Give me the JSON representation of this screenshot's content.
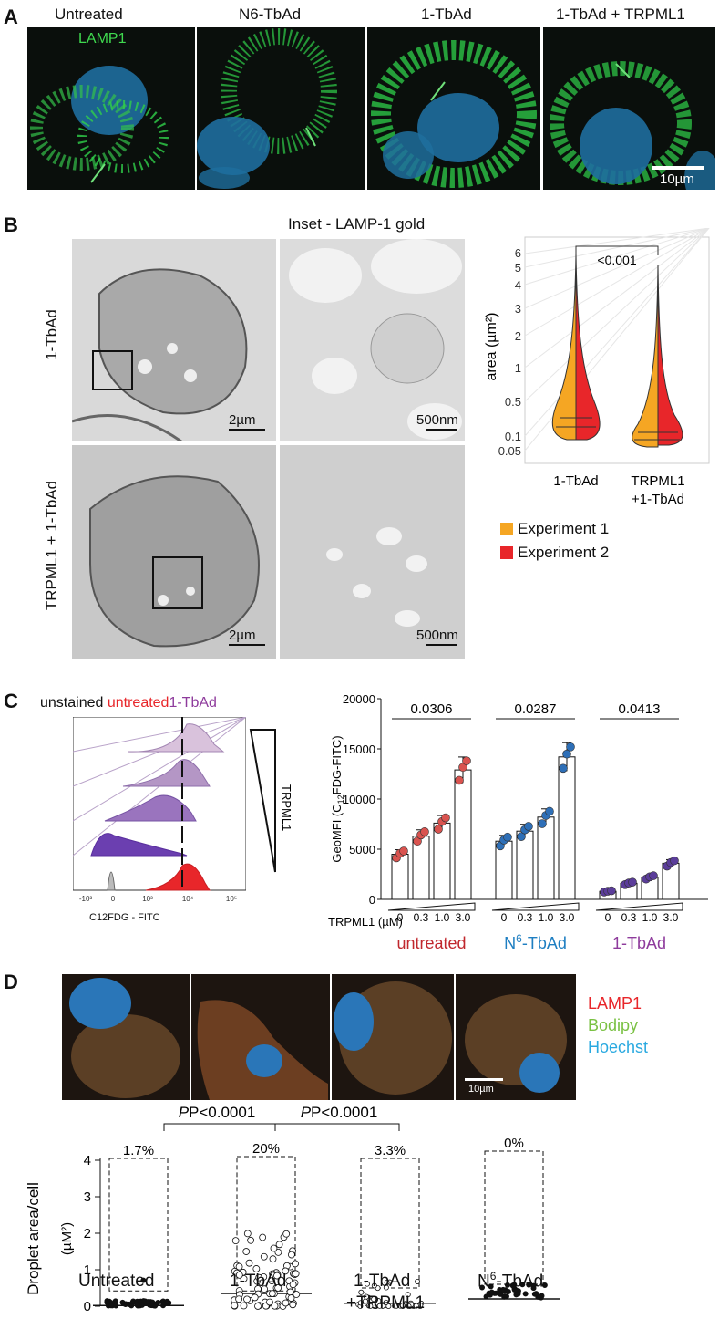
{
  "panel_a": {
    "letter": "A",
    "columns": [
      "Untreated",
      "N6-TbAd",
      "1-TbAd",
      "1-TbAd + TRPML1"
    ],
    "stain_label": "LAMP1",
    "scale_label": "10µm"
  },
  "panel_b": {
    "letter": "B",
    "inset_title": "Inset - LAMP-1 gold",
    "rows": [
      "1-TbAd",
      "TRPML1 + 1-TbAd"
    ],
    "scale_low": "2µm",
    "scale_high": "500nm",
    "violin": {
      "ylabel": "area (µm²)",
      "yticks": [
        "6",
        "5",
        "4",
        "3",
        "2",
        "1",
        "0.5",
        "0.1",
        "0.05"
      ],
      "groups": [
        "1-TbAd",
        "TRPML1",
        "+1-TbAd"
      ],
      "pvalue": "<0.001",
      "legend": [
        {
          "label": "Experiment 1",
          "color": "#f5a623"
        },
        {
          "label": "Experiment 2",
          "color": "#e8262a"
        }
      ]
    }
  },
  "panel_c": {
    "letter": "C",
    "legend_unstained": "unstained",
    "legend_untreated": "untreated",
    "legend_tbad": "1-TbAd",
    "triangle_label": "TRPML1",
    "xaxis_label": "C12FDG - FITC",
    "xticks": [
      "-10³",
      "0",
      "10³",
      "10⁴",
      "10⁵"
    ]
  },
  "panel_d": {
    "letter": "D",
    "legend": [
      {
        "label": "LAMP1",
        "color": "#e8262a"
      },
      {
        "label": "Bodipy",
        "color": "#7ac143"
      },
      {
        "label": "Hoechst",
        "color": "#29a9e0"
      }
    ],
    "scale_label": "10µm",
    "pvalues": [
      "P<0.0001",
      "P<0.0001"
    ],
    "percents": [
      "1.7%",
      "20%",
      "3.3%",
      "0%"
    ],
    "ylabel_main": "Droplet area/cell",
    "ylabel_unit": "(µM²)",
    "yticks": [
      "4",
      "3",
      "2",
      "1",
      "0"
    ],
    "groups": [
      "Untreated",
      "1-TbAd",
      "1-TbAd",
      "N6-TbAd"
    ],
    "group3_line2": "+TRPML1"
  },
  "chart_data": [
    {
      "type": "bar",
      "id": "geomfi",
      "ylabel": "GeoMFI (C12FDG-FITC)",
      "ylim": [
        0,
        20000
      ],
      "yticks": [
        "20000",
        "15000",
        "10000",
        "5000",
        "0"
      ],
      "xlabel": "TRPML1 (µM)",
      "concentrations": [
        "0",
        "0.3",
        "1.0",
        "3.0"
      ],
      "series": [
        {
          "name": "untreated",
          "label_color": "#c0272d",
          "dot_color": "#d9534f",
          "values": [
            4500,
            6300,
            7600,
            12900
          ],
          "pvalue": "0.0306"
        },
        {
          "name": "N6-TbAd",
          "label_color": "#1f7fc2",
          "dot_color": "#2e6fb7",
          "values": [
            5800,
            6800,
            8200,
            14200
          ],
          "pvalue": "0.0287"
        },
        {
          "name": "1-TbAd",
          "label_color": "#8e3b9c",
          "dot_color": "#5b3d9a",
          "values": [
            800,
            1600,
            2200,
            3600
          ],
          "pvalue": "0.0413"
        }
      ]
    },
    {
      "type": "scatter",
      "id": "droplet",
      "ylabel": "Droplet area/cell (µM²)",
      "ylim": [
        0,
        4
      ],
      "categories": [
        "Untreated",
        "1-TbAd",
        "1-TbAd +TRPML1",
        "N6-TbAd"
      ],
      "medians": [
        0.02,
        0.35,
        0.08,
        0.2
      ]
    }
  ]
}
